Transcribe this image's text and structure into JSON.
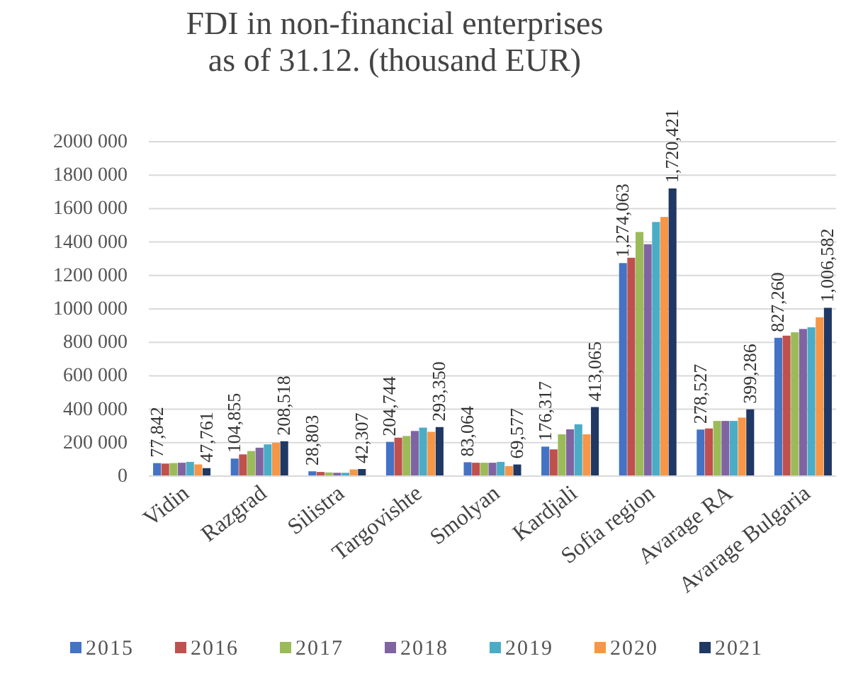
{
  "chart_data": {
    "type": "bar",
    "title": "FDI in non-financial enterprises as of 31.12. (thousand EUR)",
    "categories": [
      "Vidin",
      "Razgrad",
      "Silistra",
      "Targovishte",
      "Smolyan",
      "Kardjali",
      "Sofia region",
      "Avarage RA",
      "Avarage Bulgaria"
    ],
    "series": [
      {
        "name": "2015",
        "color": "#4472c4",
        "values": [
          77842,
          104855,
          28803,
          204744,
          83064,
          176317,
          1274063,
          278527,
          827260
        ],
        "value_labels": [
          "77,842",
          "104,855",
          "28,803",
          "204,744",
          "83,064",
          "176,317",
          "1,274,063",
          "278,527",
          "827,260"
        ]
      },
      {
        "name": "2016",
        "color": "#c0504d",
        "values": [
          75000,
          130000,
          25000,
          230000,
          80000,
          160000,
          1306000,
          285000,
          840000
        ]
      },
      {
        "name": "2017",
        "color": "#9bbb59",
        "values": [
          78000,
          150000,
          22000,
          240000,
          80000,
          250000,
          1460000,
          330000,
          860000
        ]
      },
      {
        "name": "2018",
        "color": "#8064a2",
        "values": [
          80000,
          170000,
          20000,
          270000,
          80000,
          280000,
          1387000,
          330000,
          880000
        ]
      },
      {
        "name": "2019",
        "color": "#4bacc6",
        "values": [
          85000,
          190000,
          20000,
          290000,
          85000,
          310000,
          1520000,
          330000,
          890000
        ]
      },
      {
        "name": "2020",
        "color": "#f79646",
        "values": [
          70000,
          200000,
          40000,
          265000,
          60000,
          250000,
          1550000,
          350000,
          950000
        ]
      },
      {
        "name": "2021",
        "color": "#1f3864",
        "values": [
          47761,
          208518,
          42307,
          293350,
          69577,
          413065,
          1720421,
          399286,
          1006582
        ],
        "value_labels": [
          "47,761",
          "208,518",
          "42,307",
          "293,350",
          "69,577",
          "413,065",
          "1,720,421",
          "399,286",
          "1,006,582"
        ]
      }
    ],
    "ylim": [
      0,
      2000000
    ],
    "yticks": [
      {
        "value": 0,
        "label": "0"
      },
      {
        "value": 200000,
        "label": "200 000"
      },
      {
        "value": 400000,
        "label": "400 000"
      },
      {
        "value": 600000,
        "label": "600 000"
      },
      {
        "value": 800000,
        "label": "800 000"
      },
      {
        "value": 1000000,
        "label": "1000 000"
      },
      {
        "value": 1200000,
        "label": "1200 000"
      },
      {
        "value": 1400000,
        "label": "1400 000"
      },
      {
        "value": 1600000,
        "label": "1600 000"
      },
      {
        "value": 1800000,
        "label": "1800 000"
      },
      {
        "value": 2000000,
        "label": "2000 000"
      }
    ],
    "grid": "y",
    "legend": "bottom"
  }
}
